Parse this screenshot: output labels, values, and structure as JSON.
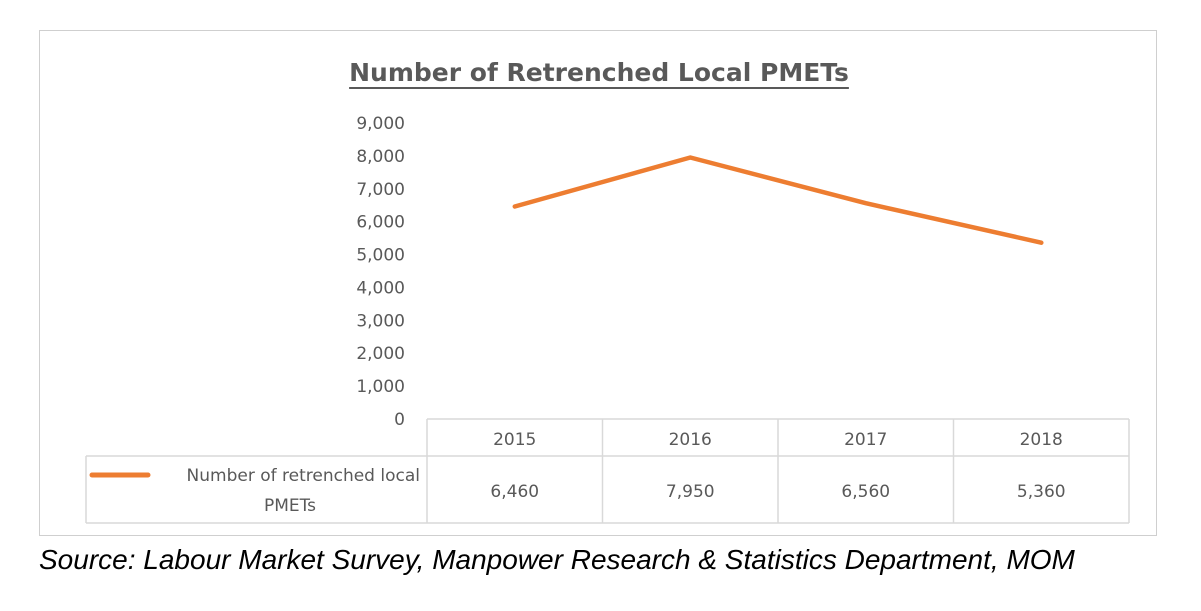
{
  "source_note": "Source: Labour Market Survey, Manpower Research & Statistics Department, MOM",
  "chart_data": {
    "type": "line",
    "title": "Number of Retrenched Local PMETs",
    "categories": [
      "2015",
      "2016",
      "2017",
      "2018"
    ],
    "series": [
      {
        "name": "Number of retrenched local PMETs",
        "values": [
          6460,
          7950,
          6560,
          5360
        ],
        "color": "#ed7d31"
      }
    ],
    "data_table": [
      "6,460",
      "7,950",
      "6,560",
      "5,360"
    ],
    "legend_lines": [
      "Number of retrenched local",
      "PMETs"
    ],
    "y_ticks": [
      "0",
      "1,000",
      "2,000",
      "3,000",
      "4,000",
      "5,000",
      "6,000",
      "7,000",
      "8,000",
      "9,000"
    ],
    "ylim": [
      0,
      9000
    ],
    "grid": false,
    "legend": "data-table"
  }
}
